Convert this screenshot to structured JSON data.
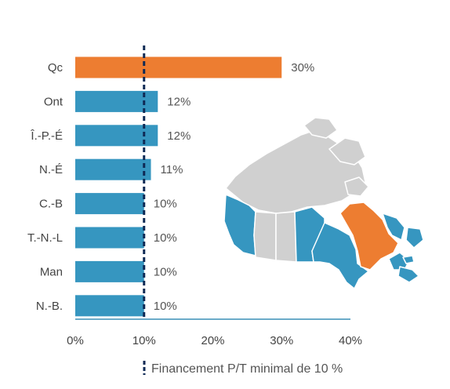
{
  "chart_data": {
    "type": "bar",
    "orientation": "horizontal",
    "categories": [
      "Qc",
      "Ont",
      "Î.-P.-É",
      "N.-É",
      "C.-B",
      "T.-N.-L",
      "Man",
      "N.-B."
    ],
    "values": [
      30,
      12,
      12,
      11,
      10,
      10,
      10,
      10
    ],
    "value_labels": [
      "30%",
      "12%",
      "12%",
      "11%",
      "10%",
      "10%",
      "10%",
      "10%"
    ],
    "bar_colors": [
      "#ED7D31",
      "#3696C0",
      "#3696C0",
      "#3696C0",
      "#3696C0",
      "#3696C0",
      "#3696C0",
      "#3696C0"
    ],
    "xlim": [
      0,
      40
    ],
    "x_ticks": [
      0,
      10,
      20,
      30,
      40
    ],
    "x_tick_labels": [
      "0%",
      "10%",
      "20%",
      "30%",
      "40%"
    ],
    "reference_line": {
      "value": 10,
      "style": "dashed",
      "color": "#0F2A55"
    },
    "legend": {
      "label": "Financement P/T minimal de 10 %",
      "position": "bottom"
    },
    "grid": false,
    "title": "",
    "xlabel": "",
    "ylabel": ""
  },
  "map": {
    "icon": "canada-map-icon",
    "colors": {
      "highlight": "#ED7D31",
      "shown": "#3696C0",
      "other": "#D0D0D0",
      "border": "#FFFFFF"
    }
  }
}
